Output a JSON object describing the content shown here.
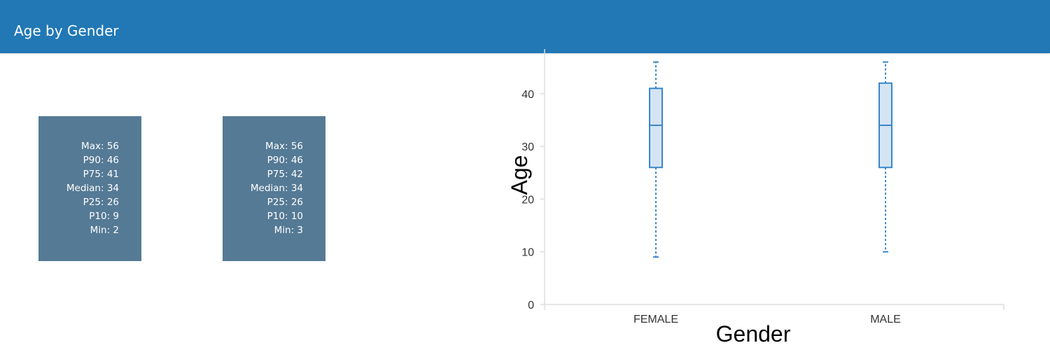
{
  "header": {
    "title": "Age by Gender"
  },
  "stat_cards": [
    {
      "id": "female",
      "lines": [
        {
          "label": "Max",
          "value": 56
        },
        {
          "label": "P90",
          "value": 46
        },
        {
          "label": "P75",
          "value": 41
        },
        {
          "label": "Median",
          "value": 34
        },
        {
          "label": "P25",
          "value": 26
        },
        {
          "label": "P10",
          "value": 9
        },
        {
          "label": "Min",
          "value": 2
        }
      ]
    },
    {
      "id": "male",
      "lines": [
        {
          "label": "Max",
          "value": 56
        },
        {
          "label": "P90",
          "value": 46
        },
        {
          "label": "P75",
          "value": 42
        },
        {
          "label": "Median",
          "value": 34
        },
        {
          "label": "P25",
          "value": 26
        },
        {
          "label": "P10",
          "value": 10
        },
        {
          "label": "Min",
          "value": 3
        }
      ]
    }
  ],
  "colors": {
    "header": "#2178b5",
    "card": "#557a95",
    "box_stroke": "#3a87c8",
    "box_fill": "#d4e4f3",
    "axis": "#dddddd"
  },
  "chart_data": {
    "type": "box",
    "xlabel": "Gender",
    "ylabel": "Age",
    "categories": [
      "FEMALE",
      "MALE"
    ],
    "boxes": [
      {
        "category": "FEMALE",
        "whisker_low": 9,
        "q1": 26,
        "median": 34,
        "q3": 41,
        "whisker_high": 46
      },
      {
        "category": "MALE",
        "whisker_low": 10,
        "q1": 26,
        "median": 34,
        "q3": 42,
        "whisker_high": 46
      }
    ],
    "yticks": [
      0,
      10,
      20,
      30,
      40
    ],
    "ylim": [
      0,
      46
    ],
    "grid": false
  }
}
